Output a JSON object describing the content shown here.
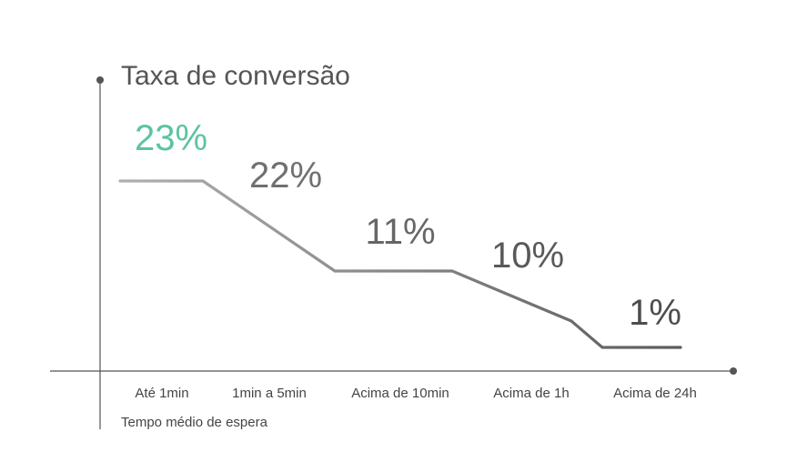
{
  "chart_data": {
    "type": "line",
    "title": "Taxa de conversão",
    "xlabel": "Tempo médio de espera",
    "ylabel": "",
    "categories": [
      "Até 1min",
      "1min a 5min",
      "Acima de 10min",
      "Acima de 1h",
      "Acima de 24h"
    ],
    "series": [
      {
        "values": [
          23,
          22,
          11,
          10,
          1
        ],
        "labels": [
          "23%",
          "22%",
          "11%",
          "10%",
          "1%"
        ]
      }
    ],
    "ylim": [
      0,
      25
    ],
    "grid": false,
    "legend": "none",
    "colors": {
      "highlight": "#5cc4a0",
      "label_gradient": [
        "#777777",
        "#707070",
        "#666666",
        "#595959",
        "#4d4d4d"
      ],
      "line_gradient": [
        "#b0b0b0",
        "#5c5c5c"
      ],
      "axis": "#555555"
    }
  }
}
